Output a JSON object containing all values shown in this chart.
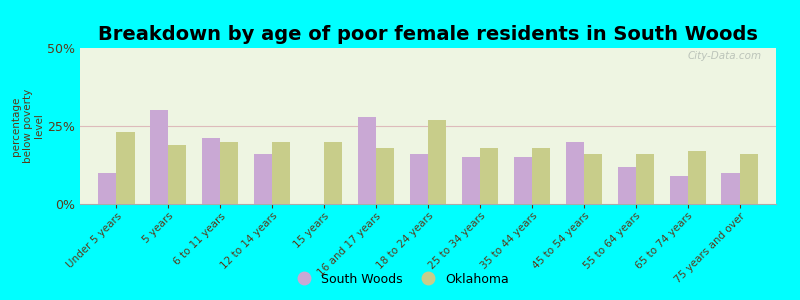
{
  "title": "Breakdown by age of poor female residents in South Woods",
  "ylabel": "percentage\nbelow poverty\nlevel",
  "categories": [
    "Under 5 years",
    "5 years",
    "6 to 11 years",
    "12 to 14 years",
    "15 years",
    "16 and 17 years",
    "18 to 24 years",
    "25 to 34 years",
    "35 to 44 years",
    "45 to 54 years",
    "55 to 64 years",
    "65 to 74 years",
    "75 years and over"
  ],
  "south_woods": [
    10,
    30,
    21,
    16,
    0,
    28,
    16,
    15,
    15,
    20,
    12,
    9,
    10
  ],
  "oklahoma": [
    23,
    19,
    20,
    20,
    20,
    18,
    27,
    18,
    18,
    16,
    16,
    17,
    16
  ],
  "bar_color_sw": "#c9a8d4",
  "bar_color_ok": "#c8cd8a",
  "background_color": "#00ffff",
  "plot_bg_color": "#eef5e2",
  "ylim": [
    0,
    50
  ],
  "yticks": [
    0,
    25,
    50
  ],
  "ytick_labels": [
    "0%",
    "25%",
    "50%"
  ],
  "bar_width": 0.35,
  "title_fontsize": 14,
  "legend_sw": "South Woods",
  "legend_ok": "Oklahoma",
  "watermark": "City-Data.com",
  "tick_color": "#5a3a1a",
  "gridline_color": "#ddbbbb",
  "spine_color": "#aaaaaa"
}
